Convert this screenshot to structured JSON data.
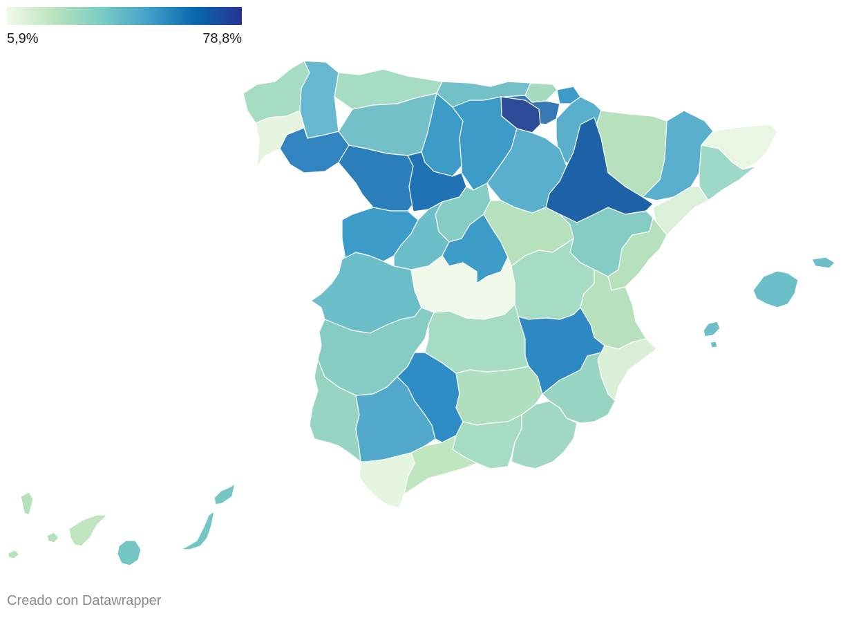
{
  "legend": {
    "min_label": "5,9%",
    "max_label": "78,8%",
    "min_value": 5.9,
    "max_value": 78.8,
    "color_stops": [
      "#f0f9e8",
      "#bae4bc",
      "#7bccc4",
      "#43a2ca",
      "#0868ac",
      "#253494"
    ]
  },
  "map": {
    "type": "choropleth",
    "region": "Spain provinces",
    "provinces": [
      {
        "id": "a-coruna",
        "color": "#a7dcc4"
      },
      {
        "id": "lugo",
        "color": "#66b8d0"
      },
      {
        "id": "pontevedra",
        "color": "#e6f5df"
      },
      {
        "id": "ourense",
        "color": "#3184c0"
      },
      {
        "id": "asturias",
        "color": "#a7dcc4"
      },
      {
        "id": "cantabria",
        "color": "#74c0c8"
      },
      {
        "id": "bizkaia",
        "color": "#a6dbc0"
      },
      {
        "id": "gipuzkoa",
        "color": "#3d9bc8"
      },
      {
        "id": "araba",
        "color": "#3878b5"
      },
      {
        "id": "la-rioja",
        "color": "#2c4c98"
      },
      {
        "id": "navarra",
        "color": "#5ab0cc"
      },
      {
        "id": "huesca",
        "color": "#b6e1bc"
      },
      {
        "id": "lleida",
        "color": "#5ab0cc"
      },
      {
        "id": "girona",
        "color": "#e9f6e3"
      },
      {
        "id": "barcelona",
        "color": "#9ed8c6"
      },
      {
        "id": "tarragona",
        "color": "#dbf0d8"
      },
      {
        "id": "zaragoza",
        "color": "#1d61a6"
      },
      {
        "id": "leon",
        "color": "#74c0c8"
      },
      {
        "id": "palencia",
        "color": "#3d9bc8"
      },
      {
        "id": "burgos",
        "color": "#3d9bc8"
      },
      {
        "id": "soria",
        "color": "#5ab0cc"
      },
      {
        "id": "zamora",
        "color": "#2a7eb9"
      },
      {
        "id": "valladolid",
        "color": "#1f72b4"
      },
      {
        "id": "segovia",
        "color": "#85ccc4"
      },
      {
        "id": "salamanca",
        "color": "#3d9bc8"
      },
      {
        "id": "avila",
        "color": "#6cbfc9"
      },
      {
        "id": "madrid",
        "color": "#3d9bc8"
      },
      {
        "id": "guadalajara",
        "color": "#b6e1bc"
      },
      {
        "id": "teruel",
        "color": "#85ccc4"
      },
      {
        "id": "castellon",
        "color": "#b6e1bc"
      },
      {
        "id": "caceres",
        "color": "#6cbfc9"
      },
      {
        "id": "toledo",
        "color": "#eff8e9"
      },
      {
        "id": "cuenca",
        "color": "#a7dcc4"
      },
      {
        "id": "valencia",
        "color": "#b6e1bc"
      },
      {
        "id": "badajoz",
        "color": "#85ccc4"
      },
      {
        "id": "ciudad-real",
        "color": "#a7dcc4"
      },
      {
        "id": "albacete",
        "color": "#2e88c2"
      },
      {
        "id": "alicante",
        "color": "#d9efd6"
      },
      {
        "id": "huelva",
        "color": "#98d4c2"
      },
      {
        "id": "sevilla",
        "color": "#52a9cc"
      },
      {
        "id": "cordoba",
        "color": "#2e8dc4"
      },
      {
        "id": "jaen",
        "color": "#b0dfc0"
      },
      {
        "id": "murcia",
        "color": "#98d4c2"
      },
      {
        "id": "granada",
        "color": "#a7dcc4"
      },
      {
        "id": "almeria",
        "color": "#a0d8c4"
      },
      {
        "id": "cadiz",
        "color": "#e6f5df"
      },
      {
        "id": "malaga",
        "color": "#c0e6c0"
      },
      {
        "id": "mallorca",
        "color": "#6cbfc9"
      },
      {
        "id": "menorca",
        "color": "#6cbfc9"
      },
      {
        "id": "ibiza",
        "color": "#6cbfc9"
      },
      {
        "id": "formentera",
        "color": "#6cbfc9"
      },
      {
        "id": "la-palma",
        "color": "#b6e1bc"
      },
      {
        "id": "la-gomera",
        "color": "#b6e1bc"
      },
      {
        "id": "el-hierro",
        "color": "#b6e1bc"
      },
      {
        "id": "tenerife",
        "color": "#c0e6c0"
      },
      {
        "id": "gran-canaria",
        "color": "#74c6c4"
      },
      {
        "id": "fuerteventura",
        "color": "#74c6c4"
      },
      {
        "id": "lanzarote",
        "color": "#74c6c4"
      }
    ]
  },
  "footer": {
    "credit": "Creado con Datawrapper"
  }
}
